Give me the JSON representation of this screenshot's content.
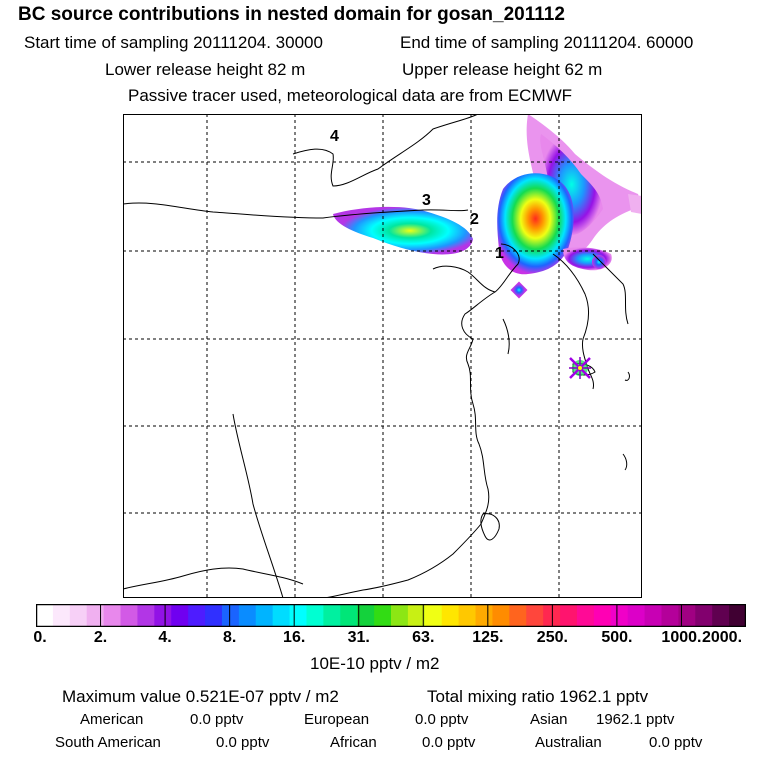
{
  "header": {
    "title": "BC  source contributions in nested domain for gosan_201112",
    "start_label": "Start time of sampling 20111204. 30000",
    "end_label": "End time of sampling 20111204. 60000",
    "lower_label": "Lower release height   82 m",
    "upper_label": "Upper release height   62 m",
    "tracer_line": "Passive tracer used, meteorological data are from ECMWF"
  },
  "map": {
    "labels": {
      "p1": "1",
      "p2": "2",
      "p3": "3",
      "p4": "4"
    },
    "receptor_symbol": "star-marker"
  },
  "colorbar": {
    "tick_labels": [
      "0.",
      "2.",
      "4.",
      "8.",
      "16.",
      "31.",
      "63.",
      "125.",
      "250.",
      "500.",
      "1000.",
      "2000."
    ],
    "units": "10E-10 pptv / m2",
    "colors": [
      "#ffffff",
      "#fce8fc",
      "#f7d0f7",
      "#f0b0f0",
      "#e888ec",
      "#d25ae6",
      "#b236e6",
      "#9212e6",
      "#7000f0",
      "#4e1cff",
      "#3030ff",
      "#1a64ff",
      "#0a8cff",
      "#00b4ff",
      "#00dcff",
      "#00ffff",
      "#00ffd2",
      "#00f0a0",
      "#00e678",
      "#14d23c",
      "#32dc14",
      "#8ce614",
      "#c8f014",
      "#f0ff14",
      "#ffe600",
      "#ffc800",
      "#ffaa00",
      "#ff8c00",
      "#ff641e",
      "#ff463c",
      "#ff2850",
      "#ff146e",
      "#ff0a96",
      "#ff00b4",
      "#f000c8",
      "#dc00c8",
      "#c800b4",
      "#b4009a",
      "#a00082",
      "#82006e",
      "#600050",
      "#400032"
    ]
  },
  "stats": {
    "max_label": "Maximum value  0.521E-07 pptv / m2",
    "total_label": "Total mixing ratio     1962.1 pptv",
    "american_label": "American",
    "american_value": "0.0 pptv",
    "european_label": "European",
    "european_value": "0.0 pptv",
    "asian_label": "Asian",
    "asian_value": "1962.1 pptv",
    "south_american_label": "South American",
    "south_american_value": "0.0 pptv",
    "african_label": "African",
    "african_value": "0.0 pptv",
    "australian_label": "Australian",
    "australian_value": "0.0 pptv"
  }
}
